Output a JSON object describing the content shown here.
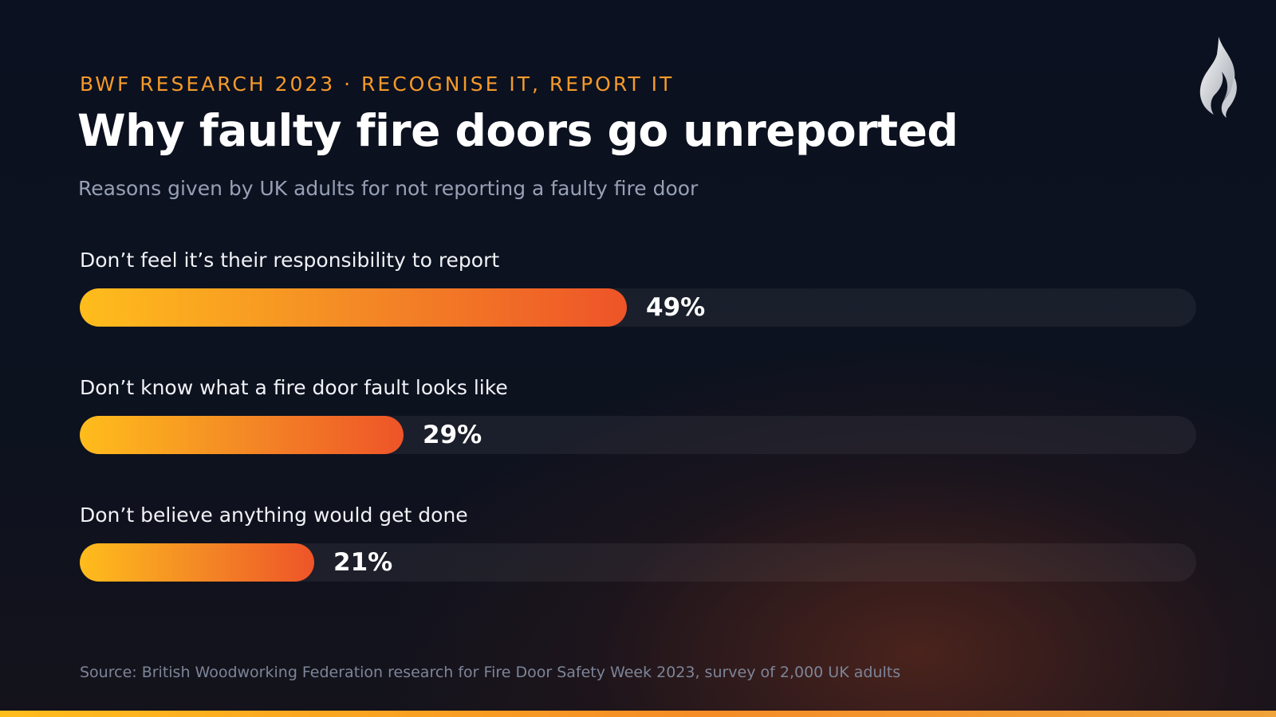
{
  "header": {
    "eyebrow": "BWF RESEARCH 2023 · RECOGNISE IT, REPORT IT",
    "title": "Why faulty fire doors go unreported",
    "subtitle": "Reasons given by UK adults for not reporting a faulty fire door"
  },
  "logo": {
    "icon": "flame-icon"
  },
  "chart_data": {
    "type": "bar",
    "orientation": "horizontal",
    "categories": [
      "Don’t feel it’s their responsibility to report",
      "Don’t know what a fire door fault looks like",
      "Don’t believe anything would get done"
    ],
    "values": [
      49,
      29,
      21
    ],
    "value_labels": [
      "49%",
      "29%",
      "21%"
    ],
    "unit": "%",
    "xlim": [
      0,
      100
    ],
    "title": "Why faulty fire doors go unreported",
    "subtitle": "Reasons given by UK adults for not reporting a faulty fire door",
    "grid": false,
    "legend": "none",
    "colors": {
      "fill_start": "#ffbd1c",
      "fill_end": "#ee5428",
      "track": "#1c1f2b"
    }
  },
  "footer": {
    "source": "Source: British Woodworking Federation research for Fire Door Safety Week 2023, survey of 2,000 UK adults"
  },
  "colors": {
    "accent": "#f59a2a",
    "background": "#0b1120"
  }
}
